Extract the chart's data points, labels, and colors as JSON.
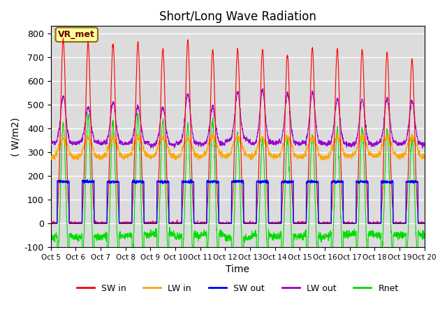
{
  "title": "Short/Long Wave Radiation",
  "xlabel": "Time",
  "ylabel": "( W/m2)",
  "ylim": [
    -100,
    830
  ],
  "yticks": [
    -100,
    0,
    100,
    200,
    300,
    400,
    500,
    600,
    700,
    800
  ],
  "num_days": 15,
  "colors": {
    "SW_in": "#FF0000",
    "LW_in": "#FFA500",
    "SW_out": "#0000FF",
    "LW_out": "#9900CC",
    "Rnet": "#00DD00"
  },
  "legend_labels": [
    "SW in",
    "LW in",
    "SW out",
    "LW out",
    "Rnet"
  ],
  "annotation_text": "VR_met",
  "background_color": "#DCDCDC",
  "grid_color": "white"
}
